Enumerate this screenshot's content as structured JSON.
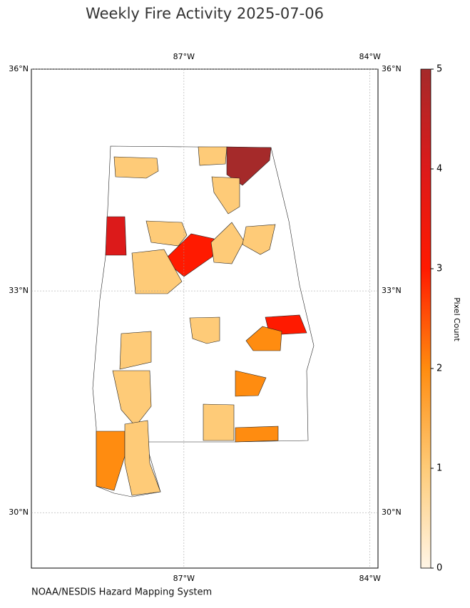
{
  "chart_data": {
    "type": "choropleth",
    "title": "Weekly Fire Activity 2025-07-06",
    "caption": "NOAA/NESDIS Hazard Mapping System",
    "xlim": [
      -89.46,
      -83.87
    ],
    "ylim": [
      29.25,
      36
    ],
    "xticks": [
      {
        "value": -87,
        "label": "87°W"
      },
      {
        "value": -84,
        "label": "84°W"
      }
    ],
    "yticks": [
      {
        "value": 36,
        "label": "36°N"
      },
      {
        "value": 33,
        "label": "33°N"
      },
      {
        "value": 30,
        "label": "30°N"
      }
    ],
    "grid": true,
    "values": [
      1,
      1,
      5,
      1,
      4,
      1,
      3,
      1,
      1,
      1,
      3,
      2,
      1,
      1,
      1,
      2,
      1,
      2,
      2,
      1
    ],
    "colorbar": {
      "label": "Pixel Count",
      "lim": [
        0,
        5
      ],
      "ticks": [
        0,
        1,
        2,
        3,
        4,
        5
      ],
      "colormap": [
        "#fff5e6",
        "#fecb78",
        "#ff8c10",
        "#ff1a00",
        "#dc1a1a",
        "#a52a2a"
      ]
    }
  }
}
